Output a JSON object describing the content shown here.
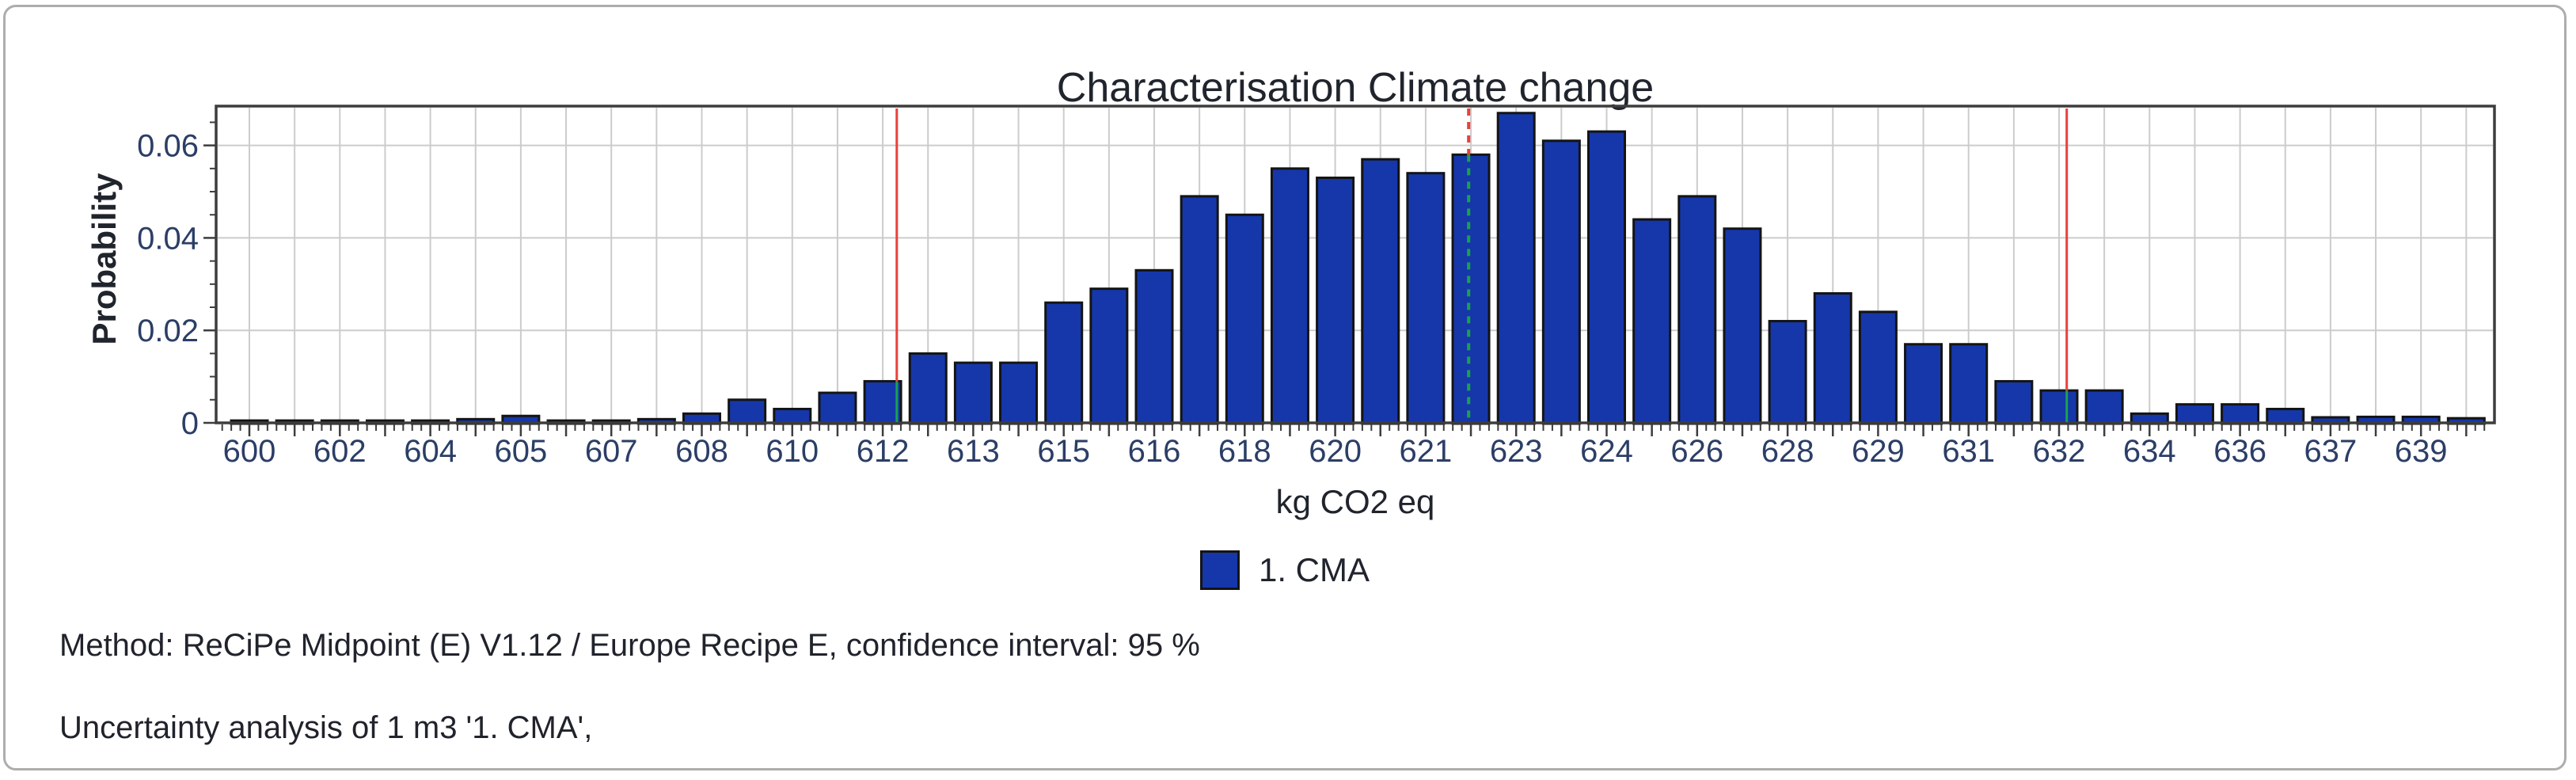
{
  "title": "Characterisation Climate change",
  "colors": {
    "bar_fill": "#1537aa",
    "bar_border": "#141414",
    "grid": "#cccccc",
    "frame": "#3d3d3d",
    "tick_text": "#2b3e66",
    "text": "#20242c",
    "panel_border": "#adadad",
    "line_red": "#e8413a",
    "line_green": "#1aa24b"
  },
  "legend": [
    {
      "label": "1. CMA",
      "color": "#1537aa"
    }
  ],
  "footer": {
    "method_line": "Method: ReCiPe Midpoint (E) V1.12 / Europe Recipe E, confidence interval: 95 %",
    "analysis_line": "Uncertainty analysis of 1 m3 '1. CMA',"
  },
  "chart_data": {
    "type": "bar",
    "title": "Characterisation Climate change",
    "xlabel": "kg CO2 eq",
    "ylabel": "Probability",
    "series_name": "1. CMA",
    "ylim": [
      0,
      0.0685
    ],
    "yticks": [
      0,
      0.02,
      0.04,
      0.06
    ],
    "y_tick_labels": [
      "0",
      "0.02",
      "0.04",
      "0.06"
    ],
    "y_minor_step": 0.005,
    "grid": true,
    "legend_position": "bottom",
    "categories": [
      "600",
      "",
      "602",
      "",
      "604",
      "",
      "605",
      "",
      "607",
      "",
      "608",
      "",
      "610",
      "",
      "612",
      "",
      "613",
      "",
      "615",
      "",
      "616",
      "",
      "618",
      "",
      "620",
      "",
      "621",
      "",
      "623",
      "",
      "624",
      "",
      "626",
      "",
      "628",
      "",
      "629",
      "",
      "631",
      "",
      "632",
      "",
      "634",
      "",
      "636",
      "",
      "637",
      "",
      "639",
      ""
    ],
    "values": [
      0.0005,
      0.0005,
      0.0005,
      0.0005,
      0.0005,
      0.0008,
      0.0015,
      0.0005,
      0.0005,
      0.0008,
      0.002,
      0.005,
      0.003,
      0.0065,
      0.009,
      0.015,
      0.013,
      0.013,
      0.026,
      0.029,
      0.033,
      0.049,
      0.045,
      0.055,
      0.053,
      0.057,
      0.054,
      0.058,
      0.067,
      0.061,
      0.063,
      0.044,
      0.049,
      0.042,
      0.022,
      0.028,
      0.024,
      0.017,
      0.017,
      0.009,
      0.007,
      0.007,
      0.002,
      0.004,
      0.004,
      0.003,
      0.0012,
      0.0013,
      0.0013,
      0.001
    ],
    "annotations": {
      "confidence_interval_pct": "95",
      "lines": [
        {
          "name": "ci-lower-line",
          "style": "solid",
          "x_bin": 14.31,
          "bar_index": 14
        },
        {
          "name": "ci-upper-line",
          "style": "solid",
          "x_bin": 40.17,
          "bar_index": 40
        },
        {
          "name": "median-line",
          "style": "dashed",
          "x_bin": 26.95,
          "bar_index": 27
        }
      ]
    }
  }
}
